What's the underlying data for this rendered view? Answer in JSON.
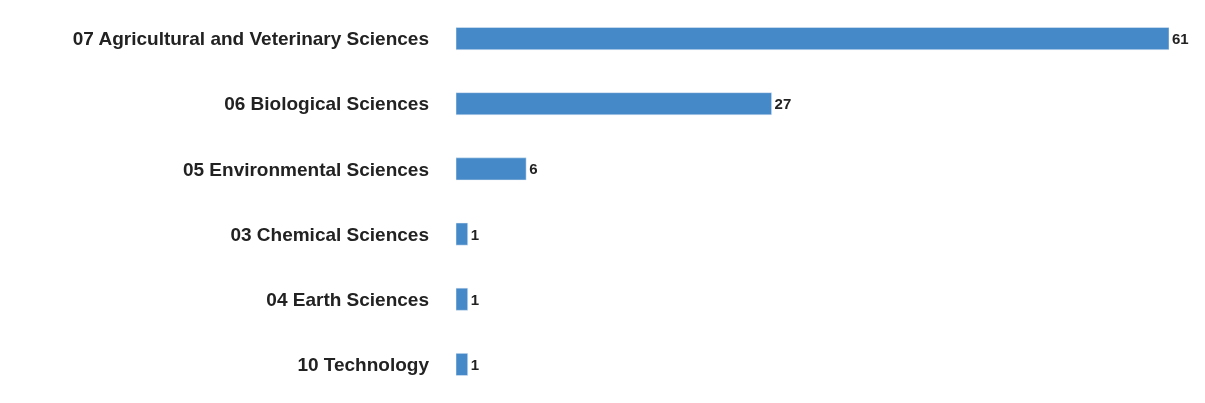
{
  "chart_data": {
    "type": "bar",
    "orientation": "horizontal",
    "data_labels": true,
    "categories": [
      "07 Agricultural and Veterinary Sciences",
      "06 Biological Sciences",
      "05 Environmental Sciences",
      "03 Chemical Sciences",
      "04 Earth Sciences",
      "10 Technology"
    ],
    "values": [
      61,
      27,
      6,
      1,
      1,
      1
    ],
    "color": "#4589c8"
  }
}
